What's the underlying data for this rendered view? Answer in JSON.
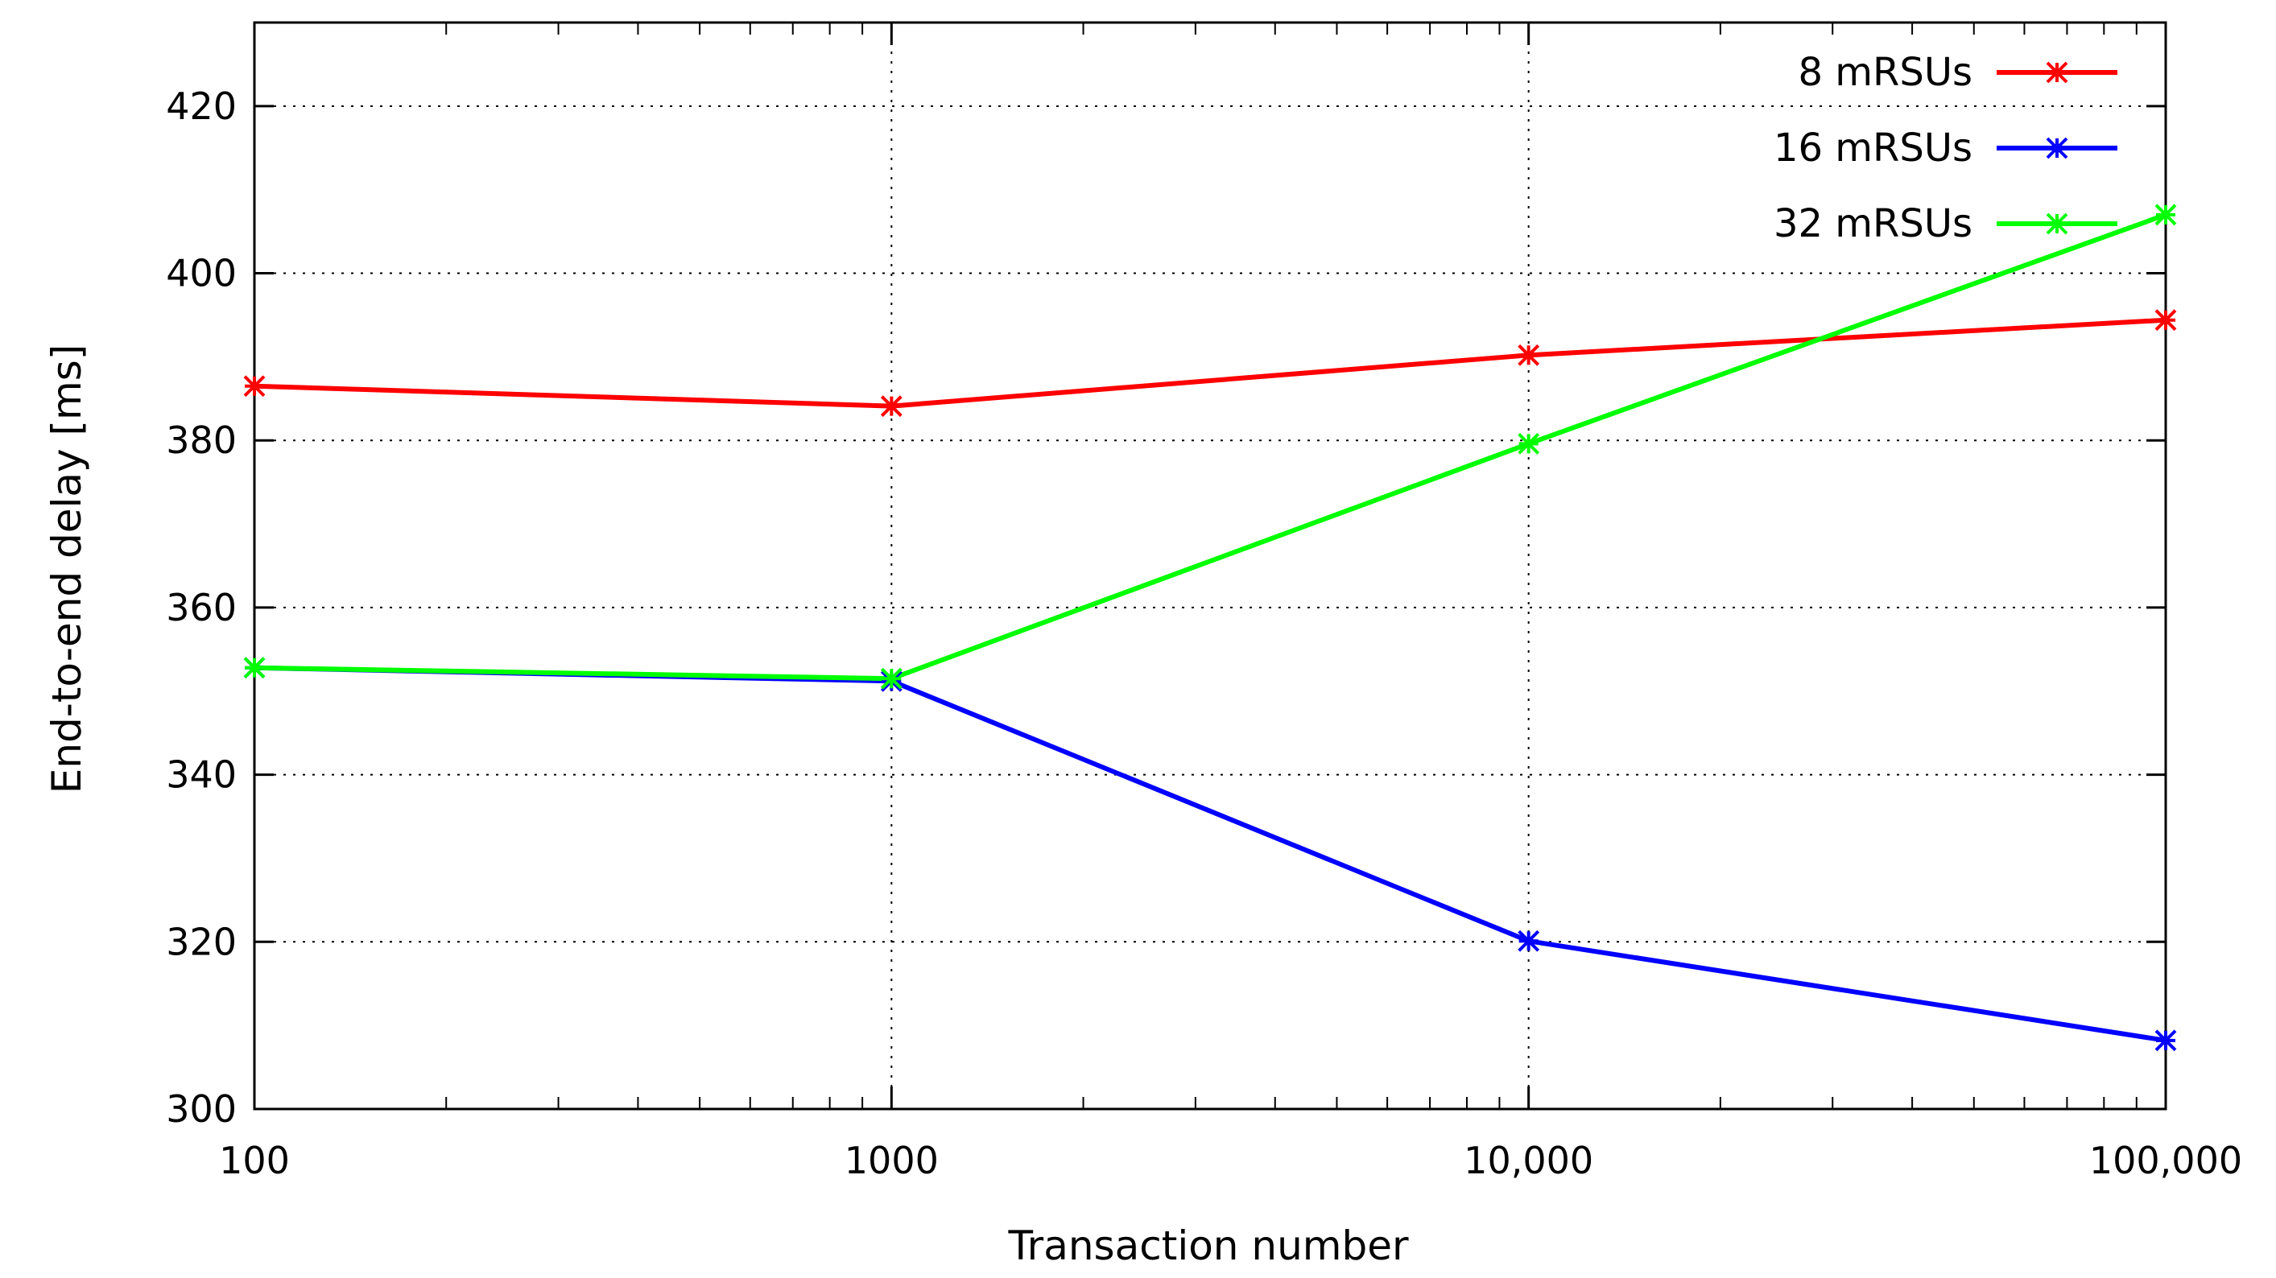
{
  "chart_data": {
    "type": "line",
    "xscale": "log",
    "xlabel": "Transaction number",
    "ylabel": "End-to-end delay [ms]",
    "xlim": [
      100,
      100000
    ],
    "ylim": [
      300,
      430
    ],
    "x": [
      100,
      1000,
      10000,
      100000
    ],
    "x_tick_labels": [
      "100",
      "1000",
      "10,000",
      "100,000"
    ],
    "y_ticks": [
      300,
      320,
      340,
      360,
      380,
      400,
      420
    ],
    "y_tick_labels": [
      "300",
      "320",
      "340",
      "360",
      "380",
      "400",
      "420"
    ],
    "grid": true,
    "legend_position": "top-right",
    "series": [
      {
        "name": "8 mRSUs",
        "color": "#ff0000",
        "values": [
          386.5,
          384.1,
          390.2,
          394.4
        ]
      },
      {
        "name": "16 mRSUs",
        "color": "#0000ff",
        "values": [
          352.8,
          351.2,
          320.1,
          308.2
        ]
      },
      {
        "name": "32 mRSUs",
        "color": "#00ff00",
        "values": [
          352.8,
          351.5,
          379.6,
          407.0
        ]
      }
    ]
  }
}
